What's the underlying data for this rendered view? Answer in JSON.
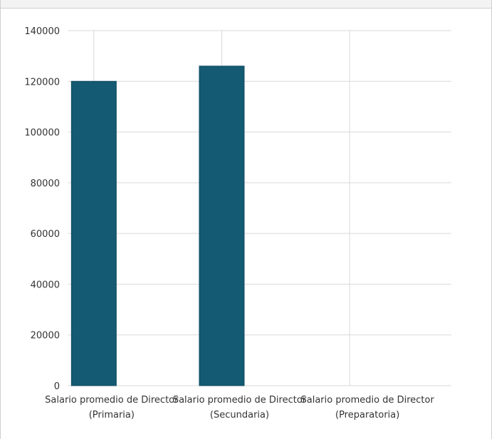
{
  "chart_data": {
    "type": "bar",
    "title": "",
    "xlabel": "",
    "ylabel": "",
    "categories": [
      {
        "line1": "Salario promedio de Director",
        "line2": "(Primaria)"
      },
      {
        "line1": "Salario promedio de Director",
        "line2": "(Secundaria)"
      },
      {
        "line1": "Salario promedio de Director",
        "line2": "(Preparatoria)"
      }
    ],
    "values": [
      120000,
      126000,
      0
    ],
    "ylim": [
      0,
      140000
    ],
    "yticks": [
      "0",
      "20000",
      "40000",
      "60000",
      "80000",
      "100000",
      "120000",
      "140000"
    ],
    "grid": true,
    "colors": {
      "bar": "#135a72",
      "grid": "#d9d9d9",
      "text": "#333333"
    }
  }
}
